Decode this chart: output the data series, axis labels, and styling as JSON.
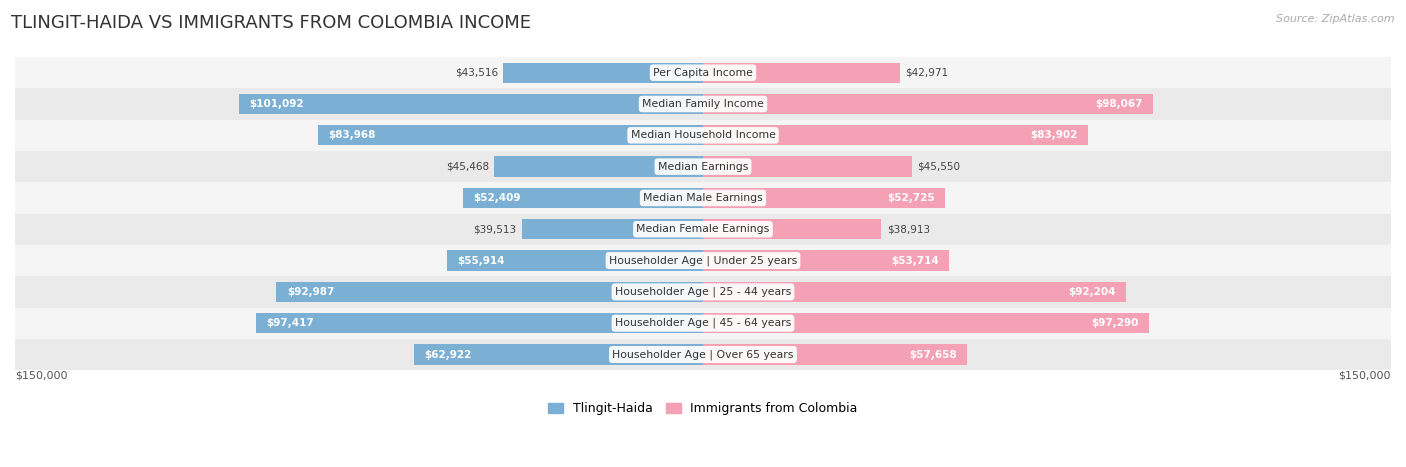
{
  "title": "TLINGIT-HAIDA VS IMMIGRANTS FROM COLOMBIA INCOME",
  "source": "Source: ZipAtlas.com",
  "categories": [
    "Per Capita Income",
    "Median Family Income",
    "Median Household Income",
    "Median Earnings",
    "Median Male Earnings",
    "Median Female Earnings",
    "Householder Age | Under 25 years",
    "Householder Age | 25 - 44 years",
    "Householder Age | 45 - 64 years",
    "Householder Age | Over 65 years"
  ],
  "tlingit_values": [
    43516,
    101092,
    83968,
    45468,
    52409,
    39513,
    55914,
    92987,
    97417,
    62922
  ],
  "colombia_values": [
    42971,
    98067,
    83902,
    45550,
    52725,
    38913,
    53714,
    92204,
    97290,
    57658
  ],
  "tlingit_labels": [
    "$43,516",
    "$101,092",
    "$83,968",
    "$45,468",
    "$52,409",
    "$39,513",
    "$55,914",
    "$92,987",
    "$97,417",
    "$62,922"
  ],
  "colombia_labels": [
    "$42,971",
    "$98,067",
    "$83,902",
    "$45,550",
    "$52,725",
    "$38,913",
    "$53,714",
    "$92,204",
    "$97,290",
    "$57,658"
  ],
  "tlingit_color": "#7bafd4",
  "colombia_color": "#f4a0b5",
  "max_value": 150000,
  "bar_height": 0.65,
  "row_bg_even": "#f5f5f5",
  "row_bg_odd": "#eaeaea",
  "legend_tlingit": "Tlingit-Haida",
  "legend_colombia": "Immigrants from Colombia",
  "xlabel_left": "$150,000",
  "xlabel_right": "$150,000",
  "inside_label_threshold": 50000
}
